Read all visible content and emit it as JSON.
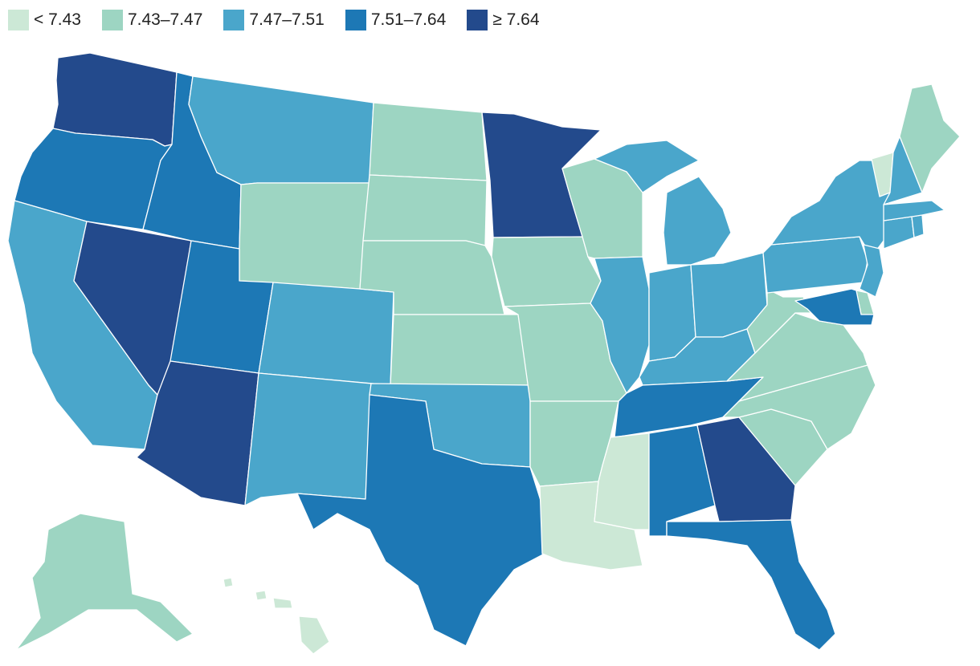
{
  "legend": {
    "items": [
      {
        "label": "< 7.43",
        "color": "#cce8d6"
      },
      {
        "label": "7.43–7.47",
        "color": "#9dd5c2"
      },
      {
        "label": "7.47–7.51",
        "color": "#4aa6cb"
      },
      {
        "label": "7.51–7.64",
        "color": "#1d78b5"
      },
      {
        "label": "≥ 7.64",
        "color": "#234a8c"
      }
    ]
  },
  "states": [
    {
      "code": "WA",
      "bin": 4
    },
    {
      "code": "OR",
      "bin": 3
    },
    {
      "code": "CA",
      "bin": 2
    },
    {
      "code": "NV",
      "bin": 4
    },
    {
      "code": "ID",
      "bin": 3
    },
    {
      "code": "MT",
      "bin": 2
    },
    {
      "code": "WY",
      "bin": 1
    },
    {
      "code": "UT",
      "bin": 3
    },
    {
      "code": "AZ",
      "bin": 4
    },
    {
      "code": "CO",
      "bin": 2
    },
    {
      "code": "NM",
      "bin": 2
    },
    {
      "code": "ND",
      "bin": 1
    },
    {
      "code": "SD",
      "bin": 1
    },
    {
      "code": "NE",
      "bin": 1
    },
    {
      "code": "KS",
      "bin": 1
    },
    {
      "code": "OK",
      "bin": 2
    },
    {
      "code": "TX",
      "bin": 3
    },
    {
      "code": "MN",
      "bin": 4
    },
    {
      "code": "IA",
      "bin": 1
    },
    {
      "code": "MO",
      "bin": 1
    },
    {
      "code": "AR",
      "bin": 1
    },
    {
      "code": "LA",
      "bin": 0
    },
    {
      "code": "WI",
      "bin": 1
    },
    {
      "code": "IL",
      "bin": 2
    },
    {
      "code": "MI",
      "bin": 2
    },
    {
      "code": "IN",
      "bin": 2
    },
    {
      "code": "OH",
      "bin": 2
    },
    {
      "code": "KY",
      "bin": 2
    },
    {
      "code": "TN",
      "bin": 3
    },
    {
      "code": "MS",
      "bin": 0
    },
    {
      "code": "AL",
      "bin": 3
    },
    {
      "code": "GA",
      "bin": 4
    },
    {
      "code": "FL",
      "bin": 3
    },
    {
      "code": "SC",
      "bin": 1
    },
    {
      "code": "NC",
      "bin": 1
    },
    {
      "code": "VA",
      "bin": 1
    },
    {
      "code": "WV",
      "bin": 1
    },
    {
      "code": "PA",
      "bin": 2
    },
    {
      "code": "NY",
      "bin": 2
    },
    {
      "code": "NJ",
      "bin": 2
    },
    {
      "code": "DE",
      "bin": 1
    },
    {
      "code": "MD",
      "bin": 3
    },
    {
      "code": "CT",
      "bin": 2
    },
    {
      "code": "RI",
      "bin": 2
    },
    {
      "code": "MA",
      "bin": 2
    },
    {
      "code": "VT",
      "bin": 0
    },
    {
      "code": "NH",
      "bin": 2
    },
    {
      "code": "ME",
      "bin": 1
    },
    {
      "code": "AK",
      "bin": 1
    },
    {
      "code": "HI",
      "bin": 0
    }
  ]
}
